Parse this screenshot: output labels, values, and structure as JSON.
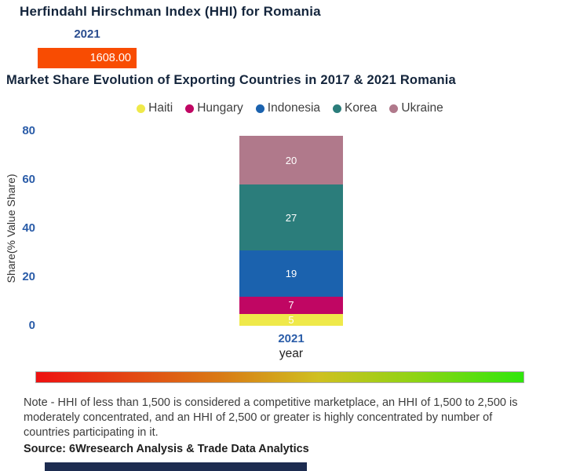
{
  "page": {
    "main_title": "Herfindahl Hirschman Index (HHI) for Romania",
    "section_title": "Market Share Evolution of Exporting Countries in 2017 & 2021 Romania",
    "note": "Note - HHI of less than 1,500 is considered a competitive marketplace, an HHI of 1,500 to 2,500 is moderately concentrated, and an HHI of 2,500 or greater is highly concentrated by number of countries participating in it.",
    "source": "Source: 6Wresearch Analysis & Trade Data Analytics"
  },
  "hhi": {
    "year": "2021",
    "value_text": "1608.00",
    "bar_color": "#f84c02",
    "year_label_color": "#2a4d8f"
  },
  "chart_data": [
    {
      "type": "bar",
      "title": "Herfindahl Hirschman Index (HHI) for Romania",
      "categories": [
        "2021"
      ],
      "values": [
        1608.0
      ],
      "bar_color": "#f84c02"
    },
    {
      "type": "bar",
      "stacked": true,
      "title": "Market Share Evolution of Exporting Countries in 2017 & 2021 Romania",
      "categories": [
        "2021"
      ],
      "xlabel": "year",
      "ylabel": "Share(% Value Share)",
      "ylim": [
        0,
        80
      ],
      "yticks": [
        0,
        20,
        40,
        60,
        80
      ],
      "grid": false,
      "legend_position": "top",
      "series": [
        {
          "name": "Haiti",
          "values": [
            5
          ],
          "color": "#efe94a"
        },
        {
          "name": "Hungary",
          "values": [
            7
          ],
          "color": "#c00663"
        },
        {
          "name": "Indonesia",
          "values": [
            19
          ],
          "color": "#1b62ae"
        },
        {
          "name": "Korea",
          "values": [
            27
          ],
          "color": "#2b7d7b"
        },
        {
          "name": "Ukraine",
          "values": [
            20
          ],
          "color": "#b0798b"
        }
      ]
    }
  ],
  "gradient_bar": {
    "stops": [
      "#ee1111",
      "#d97b15 38%",
      "#cfc020 58%",
      "#8ed414 78%",
      "#2fe60c 100%"
    ]
  },
  "theme": {
    "title_color": "#14253c",
    "axis_tick_color": "#2a5ca8",
    "footer_bar_color": "#1d2c50"
  }
}
